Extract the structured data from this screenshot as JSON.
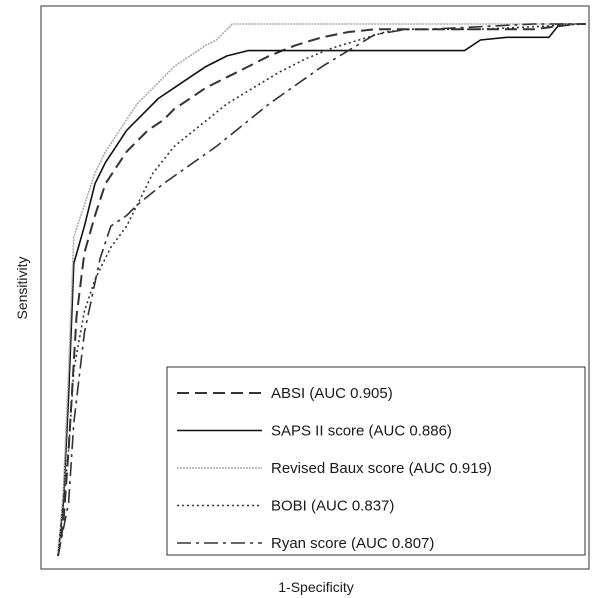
{
  "chart_data": {
    "type": "line",
    "title": "",
    "xlabel": "1-Specificity",
    "ylabel": "Sensitivity",
    "xlim": [
      0,
      1
    ],
    "ylim": [
      0,
      1
    ],
    "grid": false,
    "legend_position": "bottom-right",
    "series": [
      {
        "name": "ABSI (AUC 0.905)",
        "style": "dashed",
        "color": "#333333",
        "x": [
          0.0,
          0.01,
          0.02,
          0.035,
          0.05,
          0.07,
          0.09,
          0.11,
          0.13,
          0.15,
          0.17,
          0.2,
          0.22,
          0.25,
          0.28,
          0.32,
          0.36,
          0.4,
          0.45,
          0.5,
          0.55,
          0.6,
          0.7,
          0.8,
          0.9,
          0.98,
          1.0
        ],
        "y": [
          0.0,
          0.06,
          0.2,
          0.45,
          0.57,
          0.64,
          0.7,
          0.73,
          0.76,
          0.78,
          0.8,
          0.82,
          0.84,
          0.86,
          0.88,
          0.9,
          0.92,
          0.94,
          0.96,
          0.975,
          0.985,
          0.99,
          0.99,
          0.99,
          0.99,
          1.0,
          1.0
        ]
      },
      {
        "name": "SAPS II score (AUC 0.886)",
        "style": "solid",
        "color": "#111111",
        "x": [
          0.0,
          0.01,
          0.02,
          0.03,
          0.05,
          0.07,
          0.09,
          0.11,
          0.13,
          0.16,
          0.19,
          0.22,
          0.25,
          0.28,
          0.32,
          0.36,
          0.38,
          0.4,
          0.45,
          0.5,
          0.6,
          0.7,
          0.77,
          0.8,
          0.85,
          0.9,
          0.93,
          0.95,
          1.0
        ],
        "y": [
          0.0,
          0.1,
          0.3,
          0.55,
          0.62,
          0.7,
          0.74,
          0.77,
          0.8,
          0.83,
          0.86,
          0.88,
          0.9,
          0.92,
          0.94,
          0.95,
          0.95,
          0.95,
          0.95,
          0.95,
          0.95,
          0.95,
          0.95,
          0.97,
          0.975,
          0.975,
          0.975,
          1.0,
          1.0
        ]
      },
      {
        "name": "Revised Baux score (AUC 0.919)",
        "style": "solid-light",
        "color": "#aaaaaa",
        "x": [
          0.0,
          0.01,
          0.02,
          0.03,
          0.05,
          0.07,
          0.09,
          0.11,
          0.13,
          0.15,
          0.17,
          0.2,
          0.22,
          0.25,
          0.28,
          0.3,
          0.33,
          0.36,
          0.4,
          0.5,
          0.6,
          0.7,
          0.8,
          0.9,
          1.0
        ],
        "y": [
          0.0,
          0.12,
          0.35,
          0.6,
          0.66,
          0.72,
          0.76,
          0.79,
          0.82,
          0.85,
          0.87,
          0.9,
          0.92,
          0.94,
          0.96,
          0.97,
          1.0,
          1.0,
          1.0,
          1.0,
          1.0,
          1.0,
          1.0,
          1.0,
          1.0
        ]
      },
      {
        "name": "BOBI (AUC 0.837)",
        "style": "dotted",
        "color": "#333333",
        "x": [
          0.0,
          0.02,
          0.03,
          0.05,
          0.07,
          0.1,
          0.13,
          0.15,
          0.18,
          0.22,
          0.27,
          0.32,
          0.37,
          0.42,
          0.47,
          0.52,
          0.57,
          0.62,
          0.66,
          0.7,
          0.8,
          0.9,
          1.0
        ],
        "y": [
          0.0,
          0.2,
          0.35,
          0.46,
          0.52,
          0.58,
          0.62,
          0.66,
          0.72,
          0.77,
          0.81,
          0.85,
          0.88,
          0.91,
          0.935,
          0.955,
          0.97,
          0.985,
          0.99,
          0.99,
          0.99,
          0.995,
          1.0
        ]
      },
      {
        "name": "Ryan score (AUC 0.807)",
        "style": "dash-dot",
        "color": "#333333",
        "x": [
          0.0,
          0.02,
          0.03,
          0.05,
          0.08,
          0.1,
          0.13,
          0.15,
          0.2,
          0.3,
          0.4,
          0.5,
          0.6,
          0.63,
          0.66,
          0.7,
          0.8,
          0.9,
          1.0
        ],
        "y": [
          0.0,
          0.1,
          0.25,
          0.42,
          0.56,
          0.62,
          0.64,
          0.66,
          0.7,
          0.77,
          0.85,
          0.92,
          0.98,
          0.985,
          0.99,
          0.99,
          0.995,
          1.0,
          1.0
        ]
      }
    ]
  }
}
